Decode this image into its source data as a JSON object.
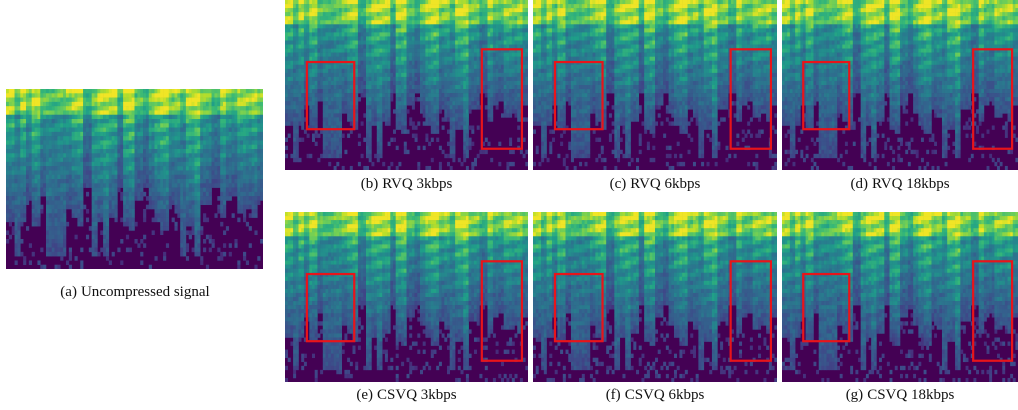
{
  "colors": {
    "background": "#440154",
    "highlight_box": "#e8141a",
    "colormap": "viridis"
  },
  "panels": [
    {
      "label": "(a)",
      "caption": "Uncompressed signal",
      "highlight_boxes": 0,
      "seed": 11
    },
    {
      "label": "(b)",
      "caption": "RVQ 3kbps",
      "highlight_boxes": 2,
      "seed": 23
    },
    {
      "label": "(c)",
      "caption": "RVQ 6kbps",
      "highlight_boxes": 2,
      "seed": 37
    },
    {
      "label": "(d)",
      "caption": "RVQ 18kbps",
      "highlight_boxes": 2,
      "seed": 41
    },
    {
      "label": "(e)",
      "caption": "CSVQ 3kbps",
      "highlight_boxes": 2,
      "seed": 53
    },
    {
      "label": "(f)",
      "caption": "CSVQ 6kbps",
      "highlight_boxes": 2,
      "seed": 67
    },
    {
      "label": "(g)",
      "caption": "CSVQ 18kbps",
      "highlight_boxes": 2,
      "seed": 79
    }
  ]
}
